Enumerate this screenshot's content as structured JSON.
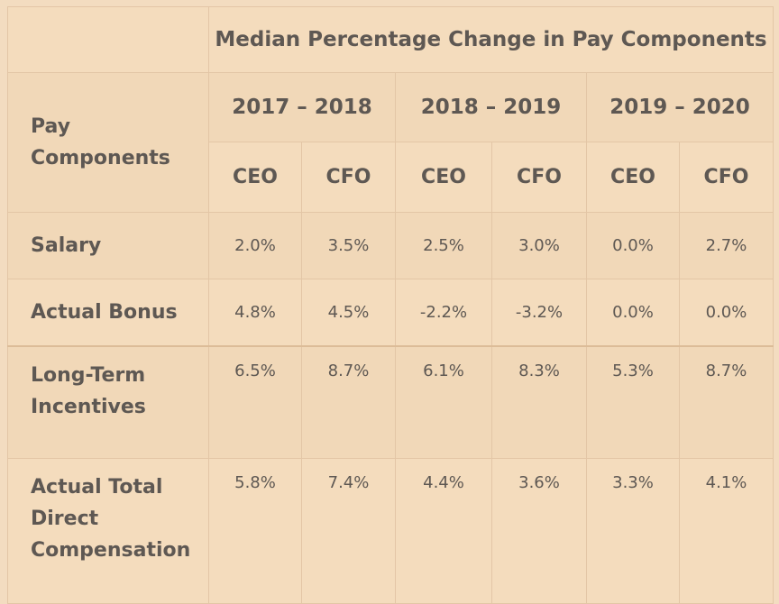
{
  "table": {
    "title": "Median Percentage Change in Pay Components",
    "row_header": "Pay Components",
    "periods": [
      "2017 – 2018",
      "2018 – 2019",
      "2019 – 2020"
    ],
    "roles": [
      "CEO",
      "CFO",
      "CEO",
      "CFO",
      "CEO",
      "CFO"
    ],
    "rows": [
      {
        "label": "Salary",
        "values": [
          "2.0%",
          "3.5%",
          "2.5%",
          "3.0%",
          "0.0%",
          "2.7%"
        ]
      },
      {
        "label": "Actual Bonus",
        "values": [
          "4.8%",
          "4.5%",
          "-2.2%",
          "-3.2%",
          "0.0%",
          "0.0%"
        ]
      },
      {
        "label": "Long-Term Incentives",
        "values": [
          "6.5%",
          "8.7%",
          "6.1%",
          "8.3%",
          "5.3%",
          "8.7%"
        ]
      },
      {
        "label": "Actual Total Direct Compensation",
        "values": [
          "5.8%",
          "7.4%",
          "4.4%",
          "3.6%",
          "3.3%",
          "4.1%"
        ]
      }
    ]
  },
  "colors": {
    "background": "#f3dcc0",
    "text": "#5e5853",
    "border": "#e3c6a6"
  }
}
